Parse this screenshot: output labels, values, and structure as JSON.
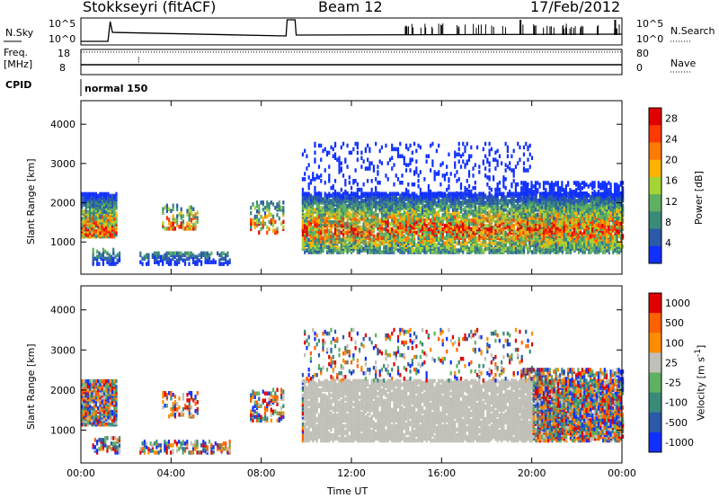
{
  "header": {
    "station": "Stokkseyri (fitACF)",
    "beam": "Beam 12",
    "date": "17/Feb/2012"
  },
  "params": {
    "nsky_label": "N.Sky",
    "nsearch_label": "N.Search",
    "freq_label": "Freq.",
    "freq_unit": "[MHz]",
    "nave_label": "Nave",
    "cpid_label": "CPID",
    "cpid_value": "normal 150",
    "noise_ticks": [
      "10^5",
      "10^0"
    ],
    "noise_ticks_right": [
      "10^5",
      "10^0"
    ],
    "freq_ticks": [
      "18",
      "8"
    ],
    "nave_ticks": [
      "80",
      "0"
    ]
  },
  "chart_data": [
    {
      "type": "heatmap",
      "name": "power",
      "ylabel": "Slant Range [km]",
      "xlabel": "Time UT",
      "x_ticks": [
        "00:00",
        "04:00",
        "08:00",
        "12:00",
        "16:00",
        "20:00",
        "00:00"
      ],
      "xlim_hours": [
        0,
        24
      ],
      "y_ticks": [
        1000,
        2000,
        3000,
        4000
      ],
      "ylim": [
        180,
        4600
      ],
      "colorbar": {
        "label": "Power [dB]",
        "ticks": [
          4,
          8,
          12,
          16,
          20,
          24,
          28
        ],
        "range": [
          0,
          30
        ],
        "colors": [
          "#1030ff",
          "#2a5aa8",
          "#3a8a7a",
          "#5fb060",
          "#a6d436",
          "#ffb200",
          "#ff7a00",
          "#ff3a00",
          "#e00000"
        ]
      }
    },
    {
      "type": "heatmap",
      "name": "velocity",
      "ylabel": "Slant Range [km]",
      "xlabel": "Time UT",
      "x_ticks": [
        "00:00",
        "04:00",
        "08:00",
        "12:00",
        "16:00",
        "20:00",
        "00:00"
      ],
      "xlim_hours": [
        0,
        24
      ],
      "y_ticks": [
        1000,
        2000,
        3000,
        4000
      ],
      "ylim": [
        180,
        4600
      ],
      "colorbar": {
        "label": "Velocity [m s-1]",
        "ticks": [
          "1000",
          "500",
          "100",
          "25",
          "-25",
          "-100",
          "-500",
          "-1000"
        ],
        "colors": [
          "#1030ff",
          "#2a5aa8",
          "#3a8a7a",
          "#5fb060",
          "#c0c0b8",
          "#ff8c00",
          "#ff6000",
          "#e00000"
        ]
      }
    }
  ]
}
